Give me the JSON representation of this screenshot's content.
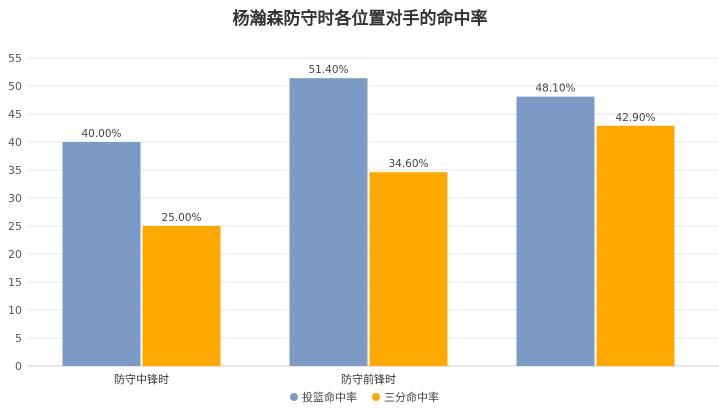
{
  "chart_data": {
    "type": "bar",
    "title": "杨瀚森防守时各位置对手的命中率",
    "categories": [
      "防守中锋时",
      "防守前锋时",
      ""
    ],
    "series": [
      {
        "name": "投篮命中率",
        "color": "#7b9ac6",
        "values": [
          40.0,
          51.4,
          48.1
        ],
        "labels": [
          "40.00%",
          "51.40%",
          "48.10%"
        ]
      },
      {
        "name": "三分命中率",
        "color": "#ffa800",
        "values": [
          25.0,
          34.6,
          42.9
        ],
        "labels": [
          "25.00%",
          "34.60%",
          "42.90%"
        ]
      }
    ],
    "ylim": [
      0,
      55
    ],
    "yticks": [
      0,
      5,
      10,
      15,
      20,
      25,
      30,
      35,
      40,
      45,
      50,
      55
    ],
    "grid": true,
    "legend_position": "bottom"
  }
}
